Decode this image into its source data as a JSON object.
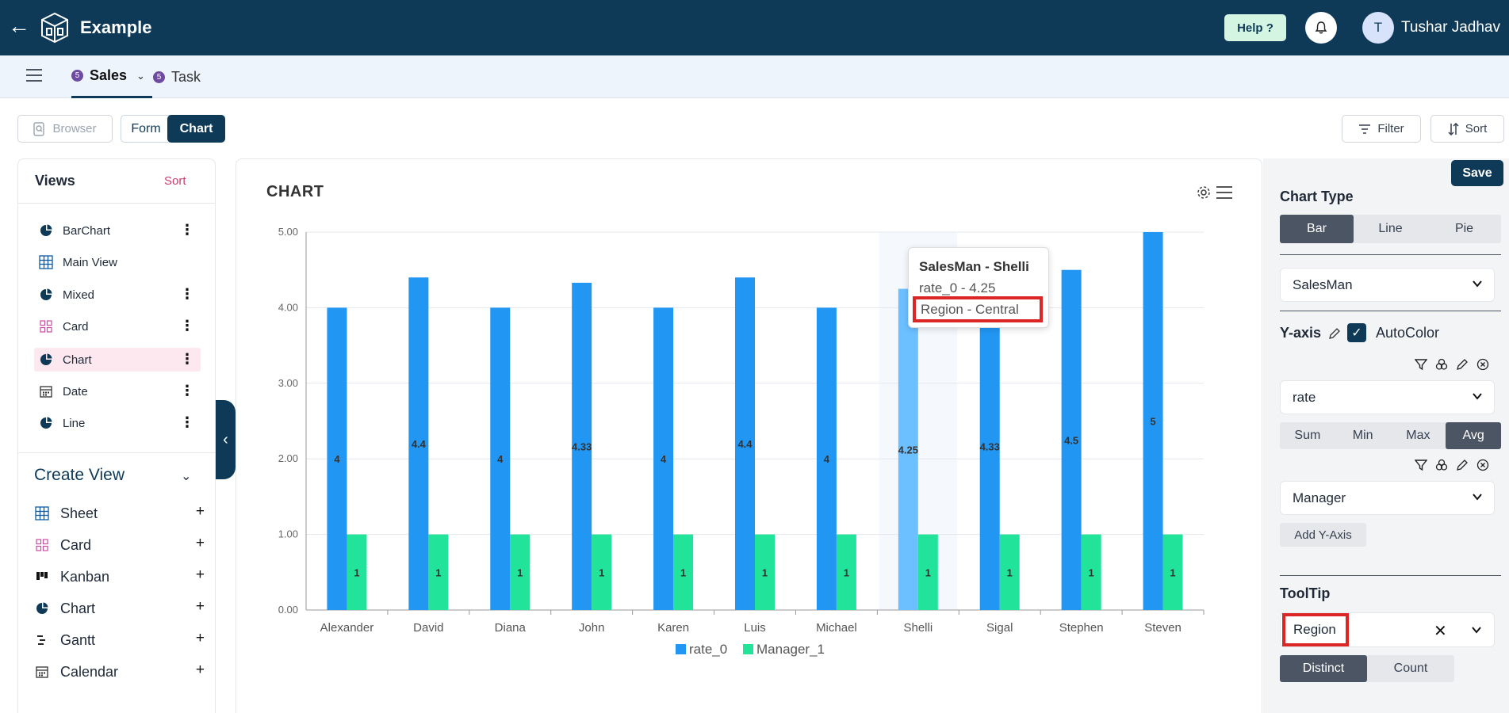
{
  "header": {
    "app_title": "Example",
    "help_label": "Help ?",
    "avatar_initial": "T",
    "username": "Tushar Jadhav",
    "colors": {
      "bar": "#0e3a58",
      "help_bg": "#d4f5e1"
    }
  },
  "tabs": [
    {
      "badge": "5",
      "label": "Sales",
      "active": true
    },
    {
      "badge": "5",
      "label": "Task",
      "active": false
    }
  ],
  "toolbar": {
    "browser_label": "Browser",
    "form_label": "Form",
    "chart_label": "Chart",
    "filter_label": "Filter",
    "sort_label": "Sort"
  },
  "views_panel": {
    "title": "Views",
    "sort_label": "Sort",
    "items": [
      {
        "label": "BarChart",
        "icon": "pie-icon"
      },
      {
        "label": "Main View",
        "icon": "grid-icon"
      },
      {
        "label": "Mixed",
        "icon": "pie-icon"
      },
      {
        "label": "Card",
        "icon": "card-icon"
      },
      {
        "label": "Chart",
        "icon": "pie-icon",
        "active": true
      },
      {
        "label": "Date",
        "icon": "calendar-icon"
      },
      {
        "label": "Line",
        "icon": "pie-icon"
      }
    ],
    "create_title": "Create View",
    "create_items": [
      {
        "label": "Sheet",
        "icon": "grid-icon"
      },
      {
        "label": "Card",
        "icon": "card-icon"
      },
      {
        "label": "Kanban",
        "icon": "kanban-icon"
      },
      {
        "label": "Chart",
        "icon": "pie-icon"
      },
      {
        "label": "Gantt",
        "icon": "gantt-icon"
      },
      {
        "label": "Calendar",
        "icon": "calendar-icon"
      }
    ]
  },
  "chart_panel": {
    "heading": "CHART",
    "tooltip": {
      "title": "SalesMan - Shelli",
      "line1": "rate_0 - 4.25",
      "line2": "Region - Central"
    }
  },
  "chart_data": {
    "type": "bar",
    "categories": [
      "Alexander",
      "David",
      "Diana",
      "John",
      "Karen",
      "Luis",
      "Michael",
      "Shelli",
      "Sigal",
      "Stephen",
      "Steven"
    ],
    "series": [
      {
        "name": "rate_0",
        "values": [
          4,
          4.4,
          4,
          4.33,
          4,
          4.4,
          4,
          4.25,
          4.33,
          4.5,
          5
        ],
        "color": "#2196f3"
      },
      {
        "name": "Manager_1",
        "values": [
          1,
          1,
          1,
          1,
          1,
          1,
          1,
          1,
          1,
          1,
          1
        ],
        "color": "#22e39a"
      }
    ],
    "value_labels": {
      "rate_0": [
        "4",
        "4.4",
        "4",
        "4.33",
        "4",
        "4.4",
        "4",
        "4.25",
        "4.33",
        "4.5",
        "5"
      ],
      "Manager_1": [
        "1",
        "1",
        "1",
        "1",
        "1",
        "1",
        "1",
        "1",
        "1",
        "1",
        "1"
      ]
    },
    "y_ticks": [
      "0.00",
      "1.00",
      "2.00",
      "3.00",
      "4.00",
      "5.00"
    ],
    "ylim": [
      0,
      5
    ],
    "grid": true,
    "highlighted_category": "Shelli",
    "legend_position": "bottom-center"
  },
  "config_panel": {
    "save_label": "Save",
    "chart_type_label": "Chart Type",
    "chart_types": [
      {
        "label": "Bar",
        "active": true
      },
      {
        "label": "Line",
        "active": false
      },
      {
        "label": "Pie",
        "active": false
      }
    ],
    "x_field": "SalesMan",
    "y_axis_label": "Y-axis",
    "autocolor_label": "AutoColor",
    "autocolor_checked": true,
    "y_field_1": "rate",
    "aggregations": [
      {
        "label": "Sum",
        "active": false
      },
      {
        "label": "Min",
        "active": false
      },
      {
        "label": "Max",
        "active": false
      },
      {
        "label": "Avg",
        "active": true
      }
    ],
    "y_field_2": "Manager",
    "add_y_label": "Add Y-Axis",
    "tooltip_label": "ToolTip",
    "tooltip_value": "Region",
    "distinct_label": "Distinct",
    "count_label": "Count"
  }
}
